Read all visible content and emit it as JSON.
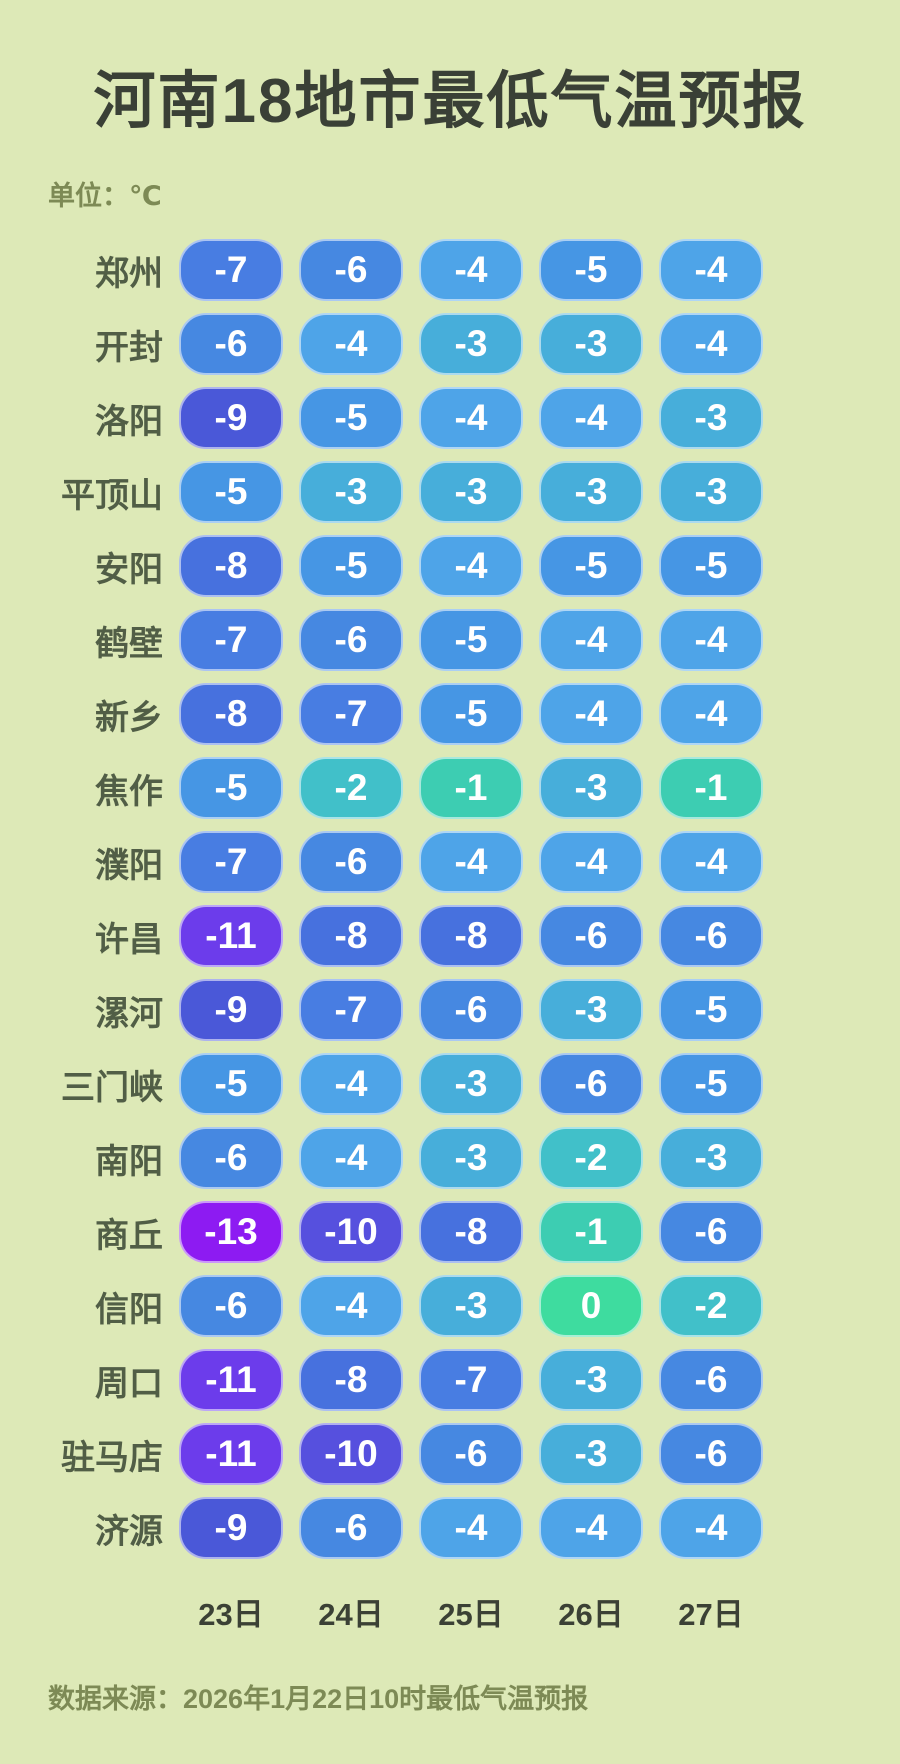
{
  "page": {
    "title": "河南18地市最低气温预报",
    "unit_label": "单位：℃",
    "source_label": "数据来源：2026年1月22日10时最低气温预报"
  },
  "colors": {
    "background": "#dde9b7",
    "title_text": "#3a4036",
    "muted_olive_text": "#7d8a55",
    "city_text": "#515e46",
    "date_text": "#3b4135",
    "pill_text": "#ffffff",
    "pill_border": "rgba(255,255,255,0.55)",
    "temp_scale": {
      "0": "#3edc9f",
      "-1": "#3dcdb2",
      "-2": "#41c0c9",
      "-3": "#47aeda",
      "-4": "#4ea4e8",
      "-5": "#4696e4",
      "-6": "#4688e1",
      "-7": "#487de2",
      "-8": "#4771de",
      "-9": "#4a58d8",
      "-10": "#5650de",
      "-11": "#6c3ceb",
      "-13": "#8d1bf2"
    }
  },
  "chart_data": {
    "type": "heatmap",
    "title": "河南18地市最低气温预报",
    "unit": "℃",
    "value_range": [
      -13,
      0
    ],
    "legend_position": "none",
    "columns": [
      "23日",
      "24日",
      "25日",
      "26日",
      "27日"
    ],
    "rows": [
      {
        "city": "郑州",
        "values": [
          -7,
          -6,
          -4,
          -5,
          -4
        ]
      },
      {
        "city": "开封",
        "values": [
          -6,
          -4,
          -3,
          -3,
          -4
        ]
      },
      {
        "city": "洛阳",
        "values": [
          -9,
          -5,
          -4,
          -4,
          -3
        ]
      },
      {
        "city": "平顶山",
        "values": [
          -5,
          -3,
          -3,
          -3,
          -3
        ]
      },
      {
        "city": "安阳",
        "values": [
          -8,
          -5,
          -4,
          -5,
          -5
        ]
      },
      {
        "city": "鹤壁",
        "values": [
          -7,
          -6,
          -5,
          -4,
          -4
        ]
      },
      {
        "city": "新乡",
        "values": [
          -8,
          -7,
          -5,
          -4,
          -4
        ]
      },
      {
        "city": "焦作",
        "values": [
          -5,
          -2,
          -1,
          -3,
          -1
        ]
      },
      {
        "city": "濮阳",
        "values": [
          -7,
          -6,
          -4,
          -4,
          -4
        ]
      },
      {
        "city": "许昌",
        "values": [
          -11,
          -8,
          -8,
          -6,
          -6
        ]
      },
      {
        "city": "漯河",
        "values": [
          -9,
          -7,
          -6,
          -3,
          -5
        ]
      },
      {
        "city": "三门峡",
        "values": [
          -5,
          -4,
          -3,
          -6,
          -5
        ]
      },
      {
        "city": "南阳",
        "values": [
          -6,
          -4,
          -3,
          -2,
          -3
        ]
      },
      {
        "city": "商丘",
        "values": [
          -13,
          -10,
          -8,
          -1,
          -6
        ]
      },
      {
        "city": "信阳",
        "values": [
          -6,
          -4,
          -3,
          0,
          -2
        ]
      },
      {
        "city": "周口",
        "values": [
          -11,
          -8,
          -7,
          -3,
          -6
        ]
      },
      {
        "city": "驻马店",
        "values": [
          -11,
          -10,
          -6,
          -3,
          -6
        ]
      },
      {
        "city": "济源",
        "values": [
          -9,
          -6,
          -4,
          -4,
          -4
        ]
      }
    ]
  }
}
